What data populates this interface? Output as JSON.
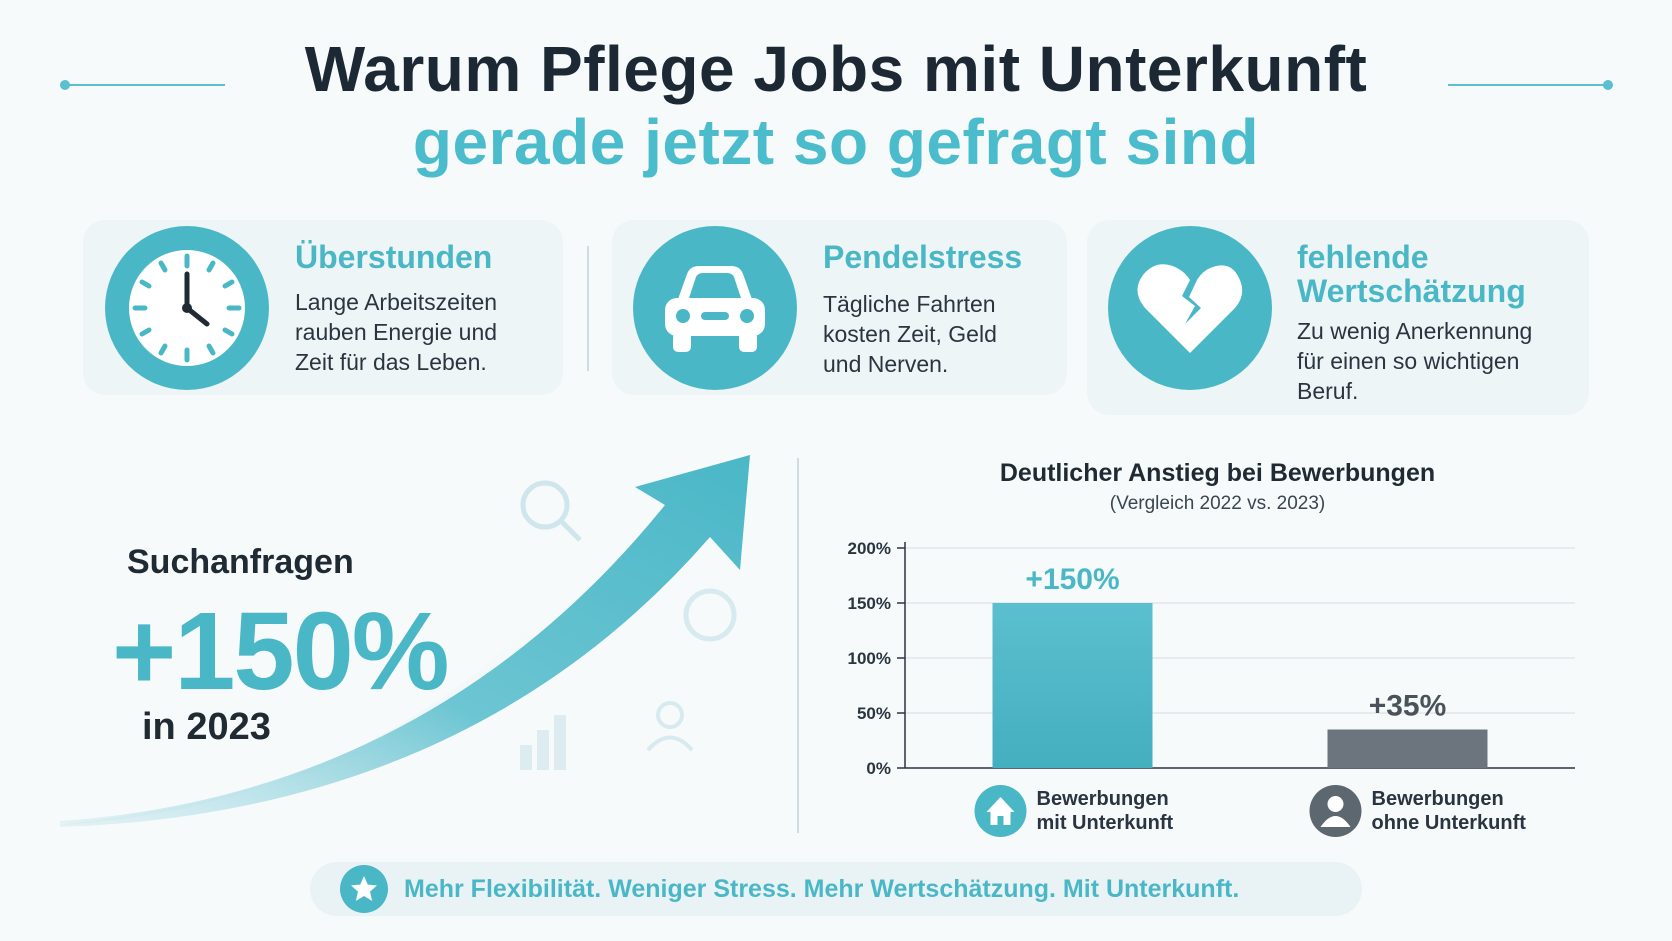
{
  "header": {
    "title_line1": "Warum Pflege Jobs mit Unterkunft",
    "title_line2": "gerade jetzt so gefragt sind"
  },
  "cards": [
    {
      "icon": "clock-icon",
      "title": "Überstunden",
      "lines": [
        "Lange Arbeitszeiten",
        "rauben Energie und",
        "Zeit für das Leben."
      ]
    },
    {
      "icon": "car-icon",
      "title": "Pendelstress",
      "lines": [
        "Tägliche Fahrten",
        "kosten Zeit, Geld",
        "und Nerven."
      ]
    },
    {
      "icon": "broken-heart-icon",
      "title_lines": [
        "fehlende",
        "Wertschätzung"
      ],
      "lines": [
        "Zu wenig Anerkennung",
        "für einen so wichtigen",
        "Beruf."
      ]
    }
  ],
  "stat": {
    "label": "Suchanfragen",
    "value": "+150%",
    "year": "in 2023"
  },
  "chart_data": {
    "type": "bar",
    "title": "Deutlicher Anstieg bei Bewerbungen",
    "subtitle": "(Vergleich 2022 vs. 2023)",
    "categories": [
      "Bewerbungen mit Unterkunft",
      "Bewerbungen ohne Unterkunft"
    ],
    "category_lines": [
      [
        "Bewerbungen",
        "mit Unterkunft"
      ],
      [
        "Bewerbungen",
        "ohne Unterkunft"
      ]
    ],
    "values": [
      150,
      35
    ],
    "data_labels": [
      "+150%",
      "+35%"
    ],
    "bar_colors": [
      "#5bbfcf",
      "#6c757d"
    ],
    "label_colors": [
      "#4ab7c7",
      "#4a535b"
    ],
    "legend_icons": [
      "house-icon",
      "person-icon"
    ],
    "yticks": [
      "0%",
      "50%",
      "100%",
      "150%",
      "200%"
    ],
    "ylim": [
      0,
      200
    ],
    "grid": true
  },
  "footer": {
    "text": "Mehr Flexibilität. Weniger Stress. Mehr Wertschätzung. Mit Unterkunft."
  }
}
